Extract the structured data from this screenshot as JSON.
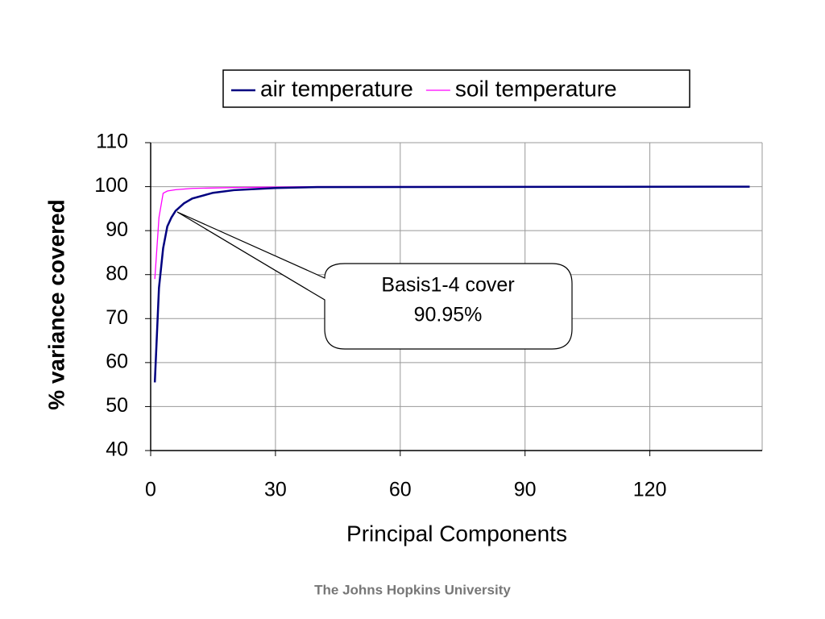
{
  "chart_data": {
    "type": "line",
    "xlabel": "Principal Components",
    "ylabel": "% variance covered",
    "xlim": [
      0,
      147
    ],
    "xticks": [
      0,
      30,
      60,
      90,
      120
    ],
    "ylim": [
      40,
      110
    ],
    "yticks": [
      40,
      50,
      60,
      70,
      80,
      90,
      100,
      110
    ],
    "grid": true,
    "legend": "top",
    "annotation": [
      "Basis1-4 cover",
      "90.95%"
    ],
    "series": [
      {
        "name": "air temperature",
        "color": "#000080",
        "x": [
          1,
          2,
          3,
          4,
          5,
          6,
          8,
          10,
          15,
          20,
          30,
          40,
          144
        ],
        "values": [
          55.5,
          77,
          86,
          90.95,
          93,
          94.5,
          96.2,
          97.3,
          98.6,
          99.2,
          99.7,
          99.9,
          100
        ]
      },
      {
        "name": "soil temperature",
        "color": "#ff00ff",
        "x": [
          1,
          2,
          3,
          4,
          6,
          10,
          20,
          40,
          144
        ],
        "values": [
          79,
          93,
          98.5,
          99,
          99.3,
          99.6,
          99.8,
          100,
          100
        ]
      }
    ]
  },
  "footer": "The Johns Hopkins University"
}
